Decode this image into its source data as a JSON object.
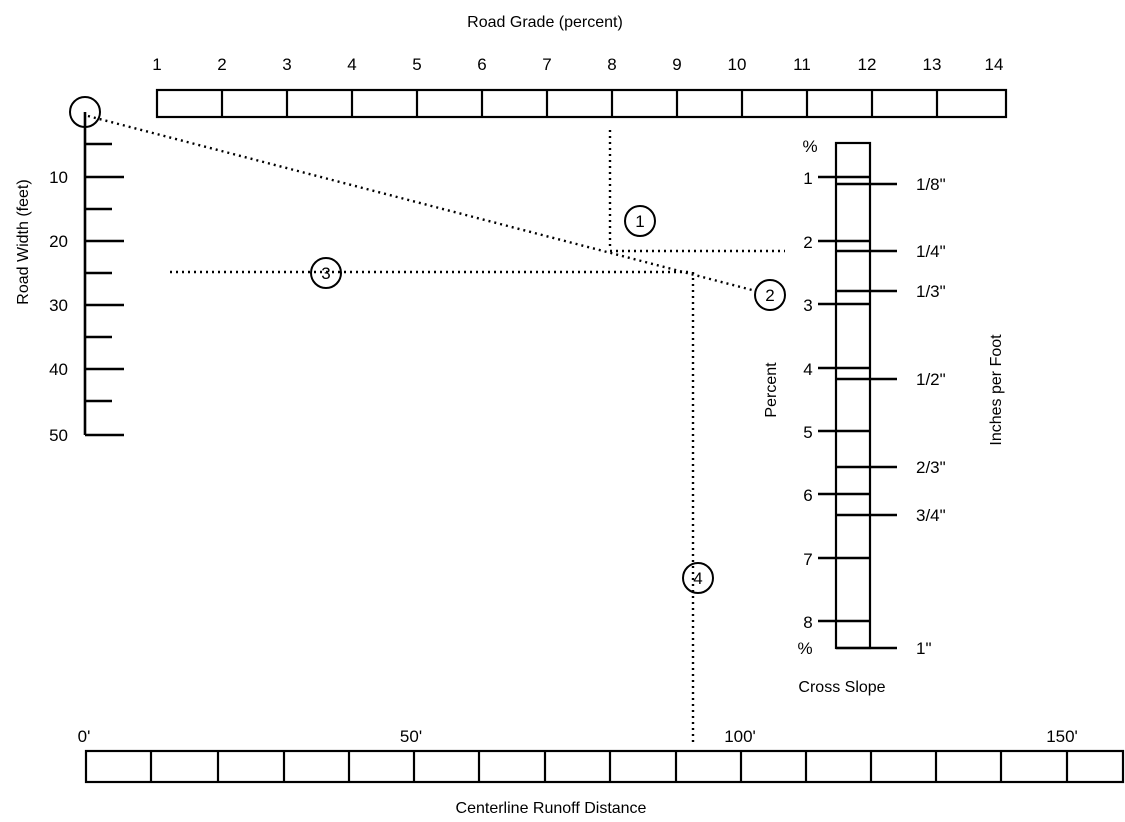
{
  "grade_scale": {
    "title": "Road Grade (percent)",
    "ticks": [
      "1",
      "2",
      "3",
      "4",
      "5",
      "6",
      "7",
      "8",
      "9",
      "10",
      "11",
      "12",
      "13",
      "14"
    ]
  },
  "width_scale": {
    "title": "Road Width (feet)",
    "ticks": [
      "10",
      "20",
      "30",
      "40",
      "50"
    ]
  },
  "runoff_scale": {
    "title": "Centerline Runoff Distance",
    "ticks": [
      "0'",
      "50'",
      "100'",
      "150'"
    ]
  },
  "cross_slope": {
    "title": "Cross Slope",
    "percent_label": "Percent",
    "inches_label": "Inches per Foot",
    "percent_symbol_top": "%",
    "percent_symbol_bottom": "%",
    "percent_ticks": [
      "1",
      "2",
      "3",
      "4",
      "5",
      "6",
      "7",
      "8"
    ],
    "inch_ticks": [
      "1/8\"",
      "1/4\"",
      "1/3\"",
      "1/2\"",
      "2/3\"",
      "3/4\"",
      "1\""
    ]
  },
  "steps": [
    "1",
    "2",
    "3",
    "4"
  ],
  "example": {
    "road_grade_percent": 8,
    "road_width_feet": 25,
    "runoff_distance_feet": 94
  }
}
